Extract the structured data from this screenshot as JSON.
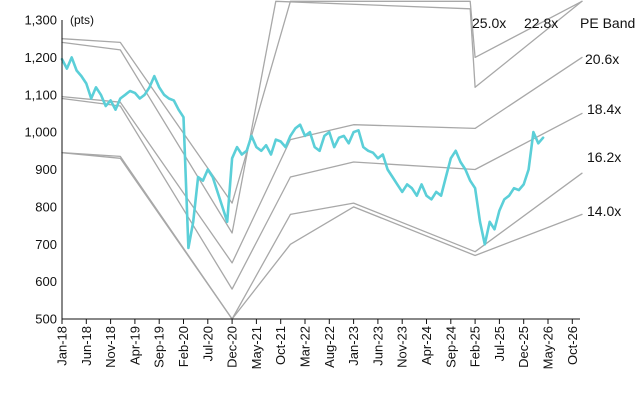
{
  "chart_data": {
    "type": "line",
    "y_unit": "(pts)",
    "legend_title": "PE Band",
    "ylim": [
      500,
      1300
    ],
    "y_ticks": [
      "1,300",
      "1,200",
      "1,100",
      "1,000",
      "900",
      "800",
      "700",
      "600",
      "500"
    ],
    "x_ticks": [
      "Jan-18",
      "Jun-18",
      "Nov-18",
      "Apr-19",
      "Sep-19",
      "Feb-20",
      "Jul-20",
      "Dec-20",
      "May-21",
      "Oct-21",
      "Mar-22",
      "Aug-22",
      "Jan-23",
      "Jun-23",
      "Nov-23",
      "Apr-24",
      "Sep-24",
      "Feb-25",
      "Jul-25",
      "Dec-25",
      "May-26",
      "Oct-26"
    ],
    "grid": false,
    "colors": {
      "index": "#5BCFD8",
      "band": "#A8A8A8",
      "axis": "#111111"
    },
    "series": [
      {
        "role": "index",
        "points": [
          [
            "2018-01",
            1195
          ],
          [
            "2018-02",
            1170
          ],
          [
            "2018-03",
            1200
          ],
          [
            "2018-04",
            1165
          ],
          [
            "2018-05",
            1150
          ],
          [
            "2018-06",
            1130
          ],
          [
            "2018-07",
            1090
          ],
          [
            "2018-08",
            1120
          ],
          [
            "2018-09",
            1100
          ],
          [
            "2018-10",
            1070
          ],
          [
            "2018-11",
            1085
          ],
          [
            "2018-12",
            1060
          ],
          [
            "2019-01",
            1090
          ],
          [
            "2019-02",
            1100
          ],
          [
            "2019-03",
            1110
          ],
          [
            "2019-04",
            1105
          ],
          [
            "2019-05",
            1090
          ],
          [
            "2019-06",
            1100
          ],
          [
            "2019-07",
            1120
          ],
          [
            "2019-08",
            1150
          ],
          [
            "2019-09",
            1120
          ],
          [
            "2019-10",
            1100
          ],
          [
            "2019-11",
            1090
          ],
          [
            "2019-12",
            1085
          ],
          [
            "2020-01",
            1060
          ],
          [
            "2020-02",
            1040
          ],
          [
            "2020-03",
            690
          ],
          [
            "2020-04",
            760
          ],
          [
            "2020-05",
            880
          ],
          [
            "2020-06",
            870
          ],
          [
            "2020-07",
            900
          ],
          [
            "2020-08",
            880
          ],
          [
            "2020-09",
            840
          ],
          [
            "2020-10",
            800
          ],
          [
            "2020-11",
            760
          ],
          [
            "2020-12",
            930
          ],
          [
            "2021-01",
            960
          ],
          [
            "2021-02",
            940
          ],
          [
            "2021-03",
            950
          ],
          [
            "2021-04",
            990
          ],
          [
            "2021-05",
            960
          ],
          [
            "2021-06",
            950
          ],
          [
            "2021-07",
            965
          ],
          [
            "2021-08",
            940
          ],
          [
            "2021-09",
            980
          ],
          [
            "2021-10",
            975
          ],
          [
            "2021-11",
            960
          ],
          [
            "2021-12",
            990
          ],
          [
            "2022-01",
            1010
          ],
          [
            "2022-02",
            1020
          ],
          [
            "2022-03",
            990
          ],
          [
            "2022-04",
            1000
          ],
          [
            "2022-05",
            960
          ],
          [
            "2022-06",
            950
          ],
          [
            "2022-07",
            990
          ],
          [
            "2022-08",
            1000
          ],
          [
            "2022-09",
            960
          ],
          [
            "2022-10",
            985
          ],
          [
            "2022-11",
            990
          ],
          [
            "2022-12",
            970
          ],
          [
            "2023-01",
            1000
          ],
          [
            "2023-02",
            1005
          ],
          [
            "2023-03",
            960
          ],
          [
            "2023-04",
            950
          ],
          [
            "2023-05",
            945
          ],
          [
            "2023-06",
            930
          ],
          [
            "2023-07",
            940
          ],
          [
            "2023-08",
            900
          ],
          [
            "2023-09",
            880
          ],
          [
            "2023-10",
            860
          ],
          [
            "2023-11",
            840
          ],
          [
            "2023-12",
            860
          ],
          [
            "2024-01",
            850
          ],
          [
            "2024-02",
            830
          ],
          [
            "2024-03",
            860
          ],
          [
            "2024-04",
            830
          ],
          [
            "2024-05",
            820
          ],
          [
            "2024-06",
            840
          ],
          [
            "2024-07",
            830
          ],
          [
            "2024-08",
            880
          ],
          [
            "2024-09",
            930
          ],
          [
            "2024-10",
            950
          ],
          [
            "2024-11",
            920
          ],
          [
            "2024-12",
            900
          ],
          [
            "2025-01",
            870
          ],
          [
            "2025-02",
            850
          ],
          [
            "2025-03",
            760
          ],
          [
            "2025-04",
            700
          ],
          [
            "2025-05",
            760
          ],
          [
            "2025-06",
            740
          ],
          [
            "2025-07",
            790
          ],
          [
            "2025-08",
            820
          ],
          [
            "2025-09",
            830
          ],
          [
            "2025-10",
            850
          ],
          [
            "2025-11",
            845
          ],
          [
            "2025-12",
            860
          ],
          [
            "2026-01",
            900
          ],
          [
            "2026-02",
            1000
          ],
          [
            "2026-03",
            970
          ],
          [
            "2026-04",
            985
          ]
        ]
      },
      {
        "role": "band",
        "name": "25.0x",
        "points": [
          [
            "2018-01",
            1250
          ],
          [
            "2019-01",
            1240
          ],
          [
            "2020-12",
            810
          ],
          [
            "2021-12",
            1350
          ],
          [
            "2025-01",
            1350
          ],
          [
            "2025-02",
            1200
          ],
          [
            "2026-12",
            1350
          ]
        ]
      },
      {
        "role": "band",
        "name": "22.8x",
        "points": [
          [
            "2018-01",
            1240
          ],
          [
            "2019-01",
            1220
          ],
          [
            "2020-12",
            730
          ],
          [
            "2021-09",
            1350
          ],
          [
            "2025-01",
            1330
          ],
          [
            "2025-02",
            1120
          ],
          [
            "2026-12",
            1350
          ]
        ]
      },
      {
        "role": "band",
        "name": "20.6x",
        "points": [
          [
            "2018-01",
            1095
          ],
          [
            "2019-01",
            1080
          ],
          [
            "2020-12",
            650
          ],
          [
            "2021-12",
            980
          ],
          [
            "2023-01",
            1020
          ],
          [
            "2025-02",
            1010
          ],
          [
            "2026-12",
            1200
          ]
        ]
      },
      {
        "role": "band",
        "name": "18.4x",
        "points": [
          [
            "2018-01",
            1090
          ],
          [
            "2019-01",
            1070
          ],
          [
            "2020-12",
            580
          ],
          [
            "2021-12",
            880
          ],
          [
            "2023-01",
            920
          ],
          [
            "2025-02",
            900
          ],
          [
            "2026-12",
            1050
          ]
        ]
      },
      {
        "role": "band",
        "name": "16.2x",
        "points": [
          [
            "2018-01",
            945
          ],
          [
            "2019-01",
            930
          ],
          [
            "2020-12",
            500
          ],
          [
            "2021-12",
            780
          ],
          [
            "2023-01",
            810
          ],
          [
            "2025-02",
            680
          ],
          [
            "2026-12",
            890
          ]
        ]
      },
      {
        "role": "band",
        "name": "14.0x",
        "points": [
          [
            "2018-01",
            945
          ],
          [
            "2019-01",
            935
          ],
          [
            "2020-12",
            500
          ],
          [
            "2021-12",
            700
          ],
          [
            "2023-01",
            800
          ],
          [
            "2025-02",
            670
          ],
          [
            "2026-12",
            780
          ]
        ]
      }
    ]
  }
}
